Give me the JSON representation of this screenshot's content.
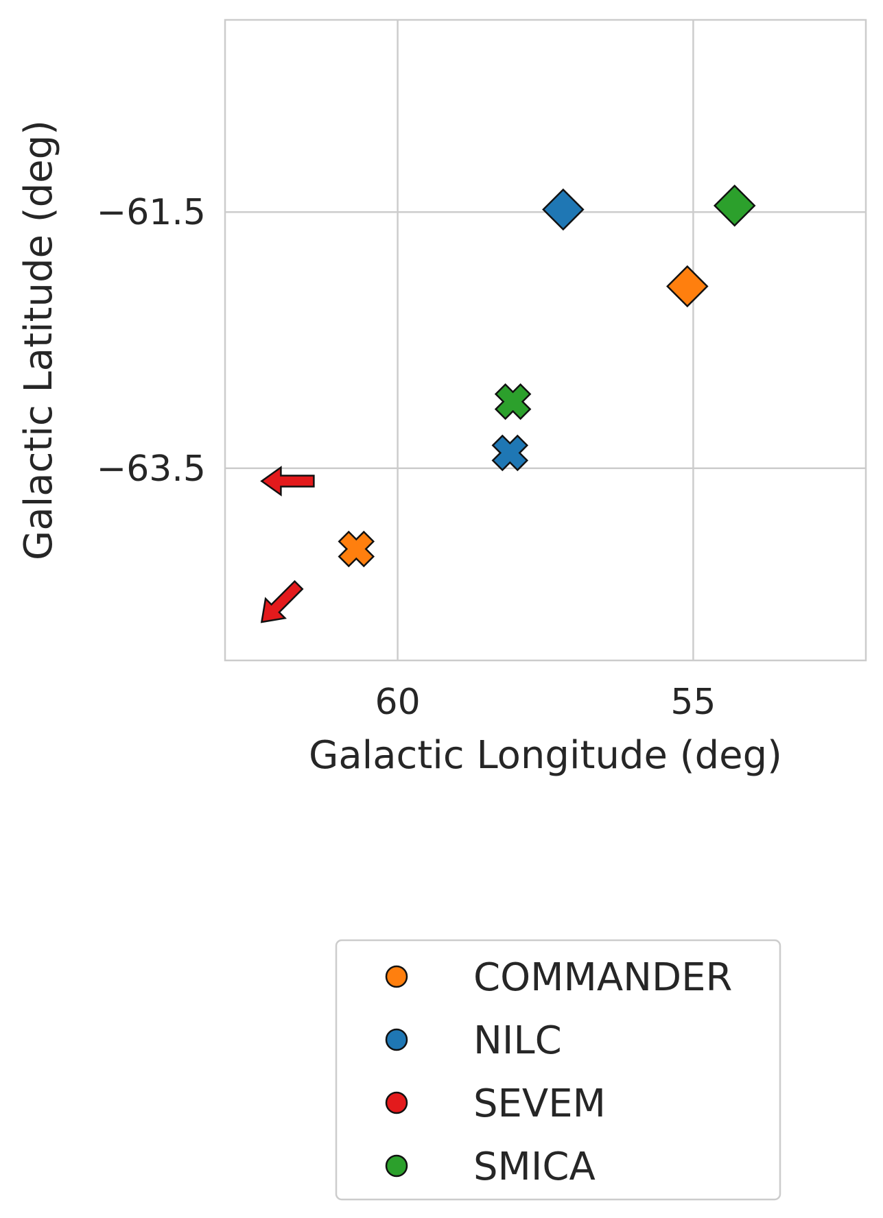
{
  "chart_data": {
    "type": "scatter",
    "title": "",
    "xlabel": "Galactic Longitude (deg)",
    "ylabel": "Galactic Latitude (deg)",
    "x_inverted": true,
    "xlim": [
      62.92,
      52.08
    ],
    "ylim": [
      -65.0,
      -60.0
    ],
    "xticks": [
      {
        "value": 60,
        "label": "60"
      },
      {
        "value": 55,
        "label": "55"
      }
    ],
    "yticks": [
      {
        "value": -61.5,
        "label": "−61.5"
      },
      {
        "value": -63.5,
        "label": "−63.5"
      }
    ],
    "grid": true,
    "legend_position": "bottom, outside plot",
    "colors": {
      "COMMANDER": "#ff7f0e",
      "NILC": "#1f77b4",
      "SEVEM": "#e31a1c",
      "SMICA": "#2ca02c"
    },
    "series": [
      {
        "name": "COMMANDER",
        "points": [
          {
            "x": 55.1,
            "y": -62.08,
            "marker": "diamond"
          },
          {
            "x": 60.7,
            "y": -64.13,
            "marker": "x"
          }
        ]
      },
      {
        "name": "NILC",
        "points": [
          {
            "x": 57.2,
            "y": -61.48,
            "marker": "diamond"
          },
          {
            "x": 58.1,
            "y": -63.38,
            "marker": "x"
          }
        ]
      },
      {
        "name": "SEVEM",
        "points": [
          {
            "x": 62.3,
            "y": -63.6,
            "marker": "arrow-left"
          },
          {
            "x": 62.3,
            "y": -64.7,
            "marker": "arrow-down-left"
          }
        ]
      },
      {
        "name": "SMICA",
        "points": [
          {
            "x": 54.3,
            "y": -61.45,
            "marker": "diamond"
          },
          {
            "x": 58.05,
            "y": -62.98,
            "marker": "x"
          }
        ]
      }
    ],
    "legend": [
      {
        "label": "COMMANDER",
        "color": "#ff7f0e"
      },
      {
        "label": "NILC",
        "color": "#1f77b4"
      },
      {
        "label": "SEVEM",
        "color": "#e31a1c"
      },
      {
        "label": "SMICA",
        "color": "#2ca02c"
      }
    ]
  }
}
